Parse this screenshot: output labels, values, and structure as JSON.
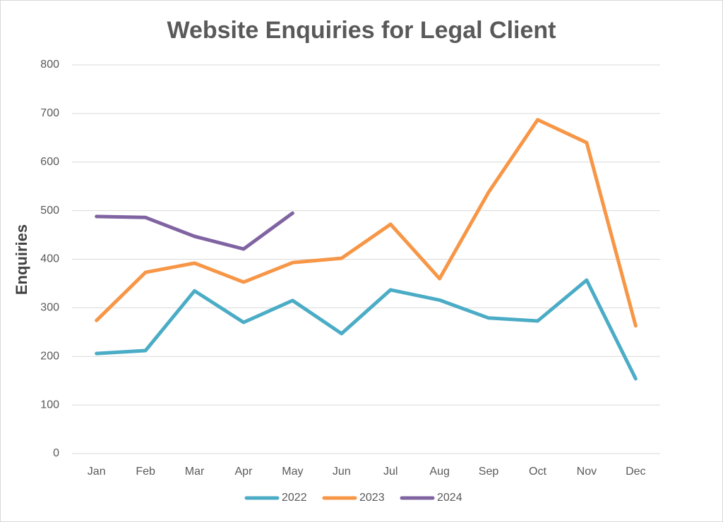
{
  "chart_data": {
    "type": "line",
    "title": "Website Enquiries for Legal Client",
    "y_label": "Enquiries",
    "categories": [
      "Jan",
      "Feb",
      "Mar",
      "Apr",
      "May",
      "Jun",
      "Jul",
      "Aug",
      "Sep",
      "Oct",
      "Nov",
      "Dec"
    ],
    "series": [
      {
        "name": "2022",
        "color": "#4bacc6",
        "values": [
          206,
          212,
          335,
          270,
          315,
          247,
          337,
          316,
          279,
          273,
          357,
          154
        ]
      },
      {
        "name": "2023",
        "color": "#f79646",
        "values": [
          274,
          373,
          392,
          353,
          393,
          402,
          472,
          360,
          538,
          687,
          640,
          263
        ]
      },
      {
        "name": "2024",
        "color": "#8064a2",
        "values": [
          488,
          486,
          447,
          421,
          495,
          null,
          null,
          null,
          null,
          null,
          null,
          null
        ]
      }
    ],
    "ylim": [
      0,
      800
    ],
    "yticks": [
      0,
      100,
      200,
      300,
      400,
      500,
      600,
      700,
      800
    ],
    "grid": true,
    "legend": "bottom"
  }
}
